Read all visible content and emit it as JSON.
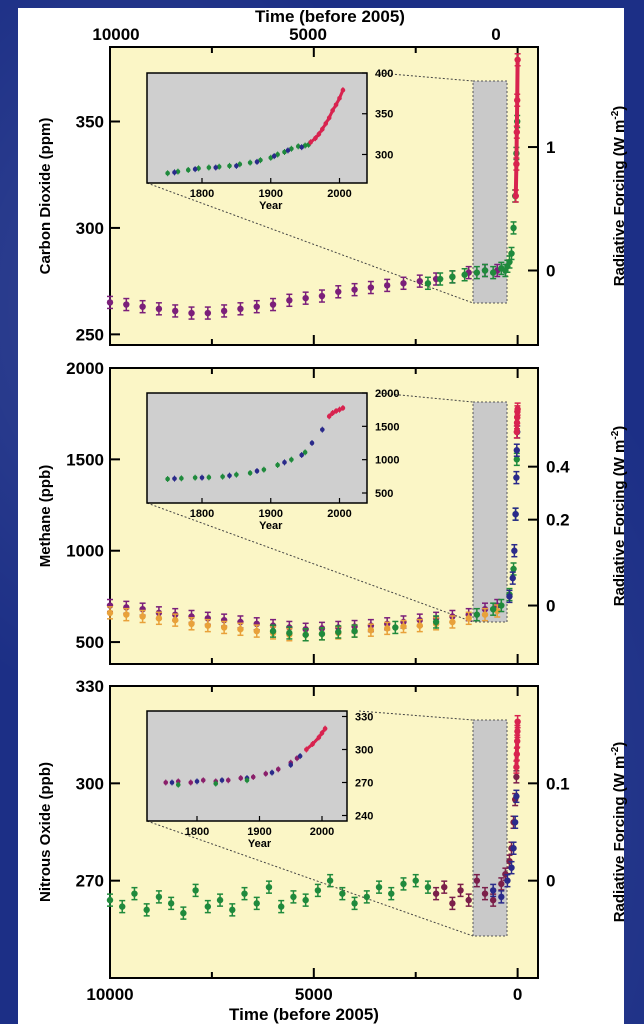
{
  "chart_data": [
    {
      "type": "scatter",
      "ylabel": "Carbon Dioxide (ppm)",
      "y2label": "Radiative Forcing (W m",
      "y2label_sup": "-2",
      "xlim": [
        10000,
        -500
      ],
      "ylim": [
        245,
        385
      ],
      "yticks": [
        "250",
        "300",
        "350"
      ],
      "yticks_values": [
        250,
        300,
        350
      ],
      "y2ticks": [
        "0",
        "1"
      ],
      "y2ticks_ppm": [
        280,
        338
      ],
      "xticks": [
        "10000",
        "5000",
        "0"
      ],
      "xticks_values": [
        10000,
        5000,
        0
      ],
      "inset": {
        "xlabel": "Year",
        "xticks": [
          "1800",
          "1900",
          "2000"
        ],
        "xticks_values": [
          1800,
          1900,
          2000
        ],
        "xlim": [
          1720,
          2040
        ],
        "ylim": [
          265,
          400
        ],
        "yticks": [
          "400",
          "350",
          "300"
        ],
        "yticks_values": [
          400,
          350,
          300
        ],
        "series": [
          {
            "color": "#1f8a3c",
            "x": [
              1750,
              1765,
              1780,
              1795,
              1810,
              1825,
              1840,
              1855,
              1870,
              1885,
              1900,
              1910,
              1920,
              1930,
              1940,
              1950,
              1955
            ],
            "y": [
              277,
              279,
              281,
              283,
              284,
              285,
              286,
              288,
              290,
              293,
              296,
              300,
              303,
              307,
              310,
              311,
              312
            ]
          },
          {
            "color": "#2a2a8a",
            "x": [
              1760,
              1790,
              1820,
              1850,
              1880,
              1905,
              1925,
              1945
            ],
            "y": [
              278,
              282,
              284,
              286,
              291,
              298,
              305,
              309
            ]
          },
          {
            "color": "#d8234f",
            "x": [
              1958,
              1965,
              1970,
              1975,
              1980,
              1985,
              1990,
              1995,
              2000,
              2005
            ],
            "y": [
              315,
              320,
              325,
              331,
              338,
              345,
              354,
              361,
              369,
              379
            ]
          }
        ]
      },
      "series": [
        {
          "color": "#7b1f7a",
          "x": [
            10000,
            9600,
            9200,
            8800,
            8400,
            8000,
            7600,
            7200,
            6800,
            6400,
            6000,
            5600,
            5200,
            4800,
            4400,
            4000,
            3600,
            3200,
            2800,
            2400,
            2000,
            1600,
            1200,
            800,
            500
          ],
          "y": [
            265,
            264,
            263,
            262,
            261,
            260,
            260,
            261,
            262,
            263,
            264,
            266,
            267,
            268,
            270,
            271,
            272,
            273,
            274,
            275,
            276,
            277,
            279,
            280,
            280
          ]
        },
        {
          "color": "#1f8a3c",
          "x": [
            2200,
            1900,
            1600,
            1300,
            1000,
            800,
            600,
            400,
            300,
            250,
            200,
            150,
            100,
            60,
            30,
            10
          ],
          "y": [
            274,
            276,
            277,
            278,
            279,
            280,
            279,
            281,
            280,
            282,
            284,
            288,
            300,
            315,
            335,
            350
          ]
        },
        {
          "color": "#d8234f",
          "x": [
            45,
            30,
            20,
            10,
            0
          ],
          "y": [
            315,
            330,
            345,
            360,
            379
          ]
        }
      ]
    },
    {
      "type": "scatter",
      "ylabel": "Methane (ppb)",
      "y2label": "Radiative Forcing (W m",
      "y2label_sup": "-2",
      "xlim": [
        10000,
        -500
      ],
      "ylim": [
        380,
        2000
      ],
      "yticks": [
        "500",
        "1000",
        "1500",
        "2000"
      ],
      "yticks_values": [
        500,
        1000,
        1500,
        2000
      ],
      "y2ticks": [
        "0",
        "0.2",
        "0.4"
      ],
      "y2ticks_ppb": [
        700,
        1170,
        1460
      ],
      "xticks": [
        "10000",
        "5000",
        "0"
      ],
      "xticks_values": [
        10000,
        5000,
        0
      ],
      "inset": {
        "xlabel": "Year",
        "xticks": [
          "1800",
          "1900",
          "2000"
        ],
        "xticks_values": [
          1800,
          1900,
          2000
        ],
        "xlim": [
          1720,
          2040
        ],
        "ylim": [
          350,
          2000
        ],
        "yticks": [
          "2000",
          "1500",
          "1000",
          "500"
        ],
        "yticks_values": [
          2000,
          1500,
          1000,
          500
        ],
        "series": [
          {
            "color": "#1f8a3c",
            "x": [
              1750,
              1770,
              1790,
              1810,
              1830,
              1850,
              1870,
              1890,
              1910,
              1930,
              1950
            ],
            "y": [
              710,
              720,
              730,
              735,
              745,
              775,
              800,
              850,
              920,
              1000,
              1110
            ]
          },
          {
            "color": "#2a2a8a",
            "x": [
              1760,
              1800,
              1840,
              1880,
              1920,
              1945,
              1960,
              1975
            ],
            "y": [
              715,
              730,
              760,
              830,
              960,
              1070,
              1250,
              1450
            ]
          },
          {
            "color": "#d8234f",
            "x": [
              1985,
              1990,
              1995,
              2000,
              2005
            ],
            "y": [
              1650,
              1700,
              1730,
              1750,
              1775
            ]
          }
        ]
      },
      "series": [
        {
          "color": "#7b1f7a",
          "x": [
            10000,
            9600,
            9200,
            8800,
            8400,
            8000,
            7600,
            7200,
            6800,
            6400,
            6000,
            5600,
            5200,
            4800,
            4400,
            4000,
            3600,
            3200,
            2800,
            2400,
            2000,
            1600,
            1200,
            800,
            500
          ],
          "y": [
            700,
            690,
            680,
            660,
            650,
            640,
            630,
            620,
            610,
            600,
            590,
            580,
            570,
            575,
            580,
            585,
            590,
            600,
            610,
            620,
            630,
            640,
            650,
            680,
            700
          ]
        },
        {
          "color": "#e8a13a",
          "x": [
            10000,
            9600,
            9200,
            8800,
            8400,
            8000,
            7600,
            7200,
            6800,
            6400,
            6000,
            5600,
            5200,
            4800,
            4400,
            4000,
            3600,
            3200,
            2800,
            2400,
            2000,
            1600,
            1200,
            800,
            500
          ],
          "y": [
            660,
            650,
            640,
            630,
            620,
            600,
            590,
            580,
            570,
            560,
            550,
            540,
            540,
            545,
            550,
            560,
            565,
            575,
            585,
            590,
            600,
            610,
            630,
            650,
            670
          ]
        },
        {
          "color": "#1f8a3c",
          "x": [
            6000,
            5600,
            5200,
            4800,
            4400,
            4000,
            3000,
            2000,
            1000,
            600,
            400,
            200,
            100,
            50,
            20
          ],
          "y": [
            560,
            550,
            540,
            545,
            555,
            560,
            580,
            610,
            650,
            680,
            700,
            760,
            900,
            1200,
            1500
          ]
        },
        {
          "color": "#2a2a8a",
          "x": [
            200,
            120,
            80,
            50,
            30,
            20,
            10
          ],
          "y": [
            750,
            850,
            1000,
            1200,
            1400,
            1550,
            1650
          ]
        },
        {
          "color": "#d8234f",
          "x": [
            20,
            15,
            10,
            5,
            0
          ],
          "y": [
            1650,
            1700,
            1730,
            1760,
            1775
          ]
        }
      ]
    },
    {
      "type": "scatter",
      "ylabel": "Nitrous Oxide (ppb)",
      "y2label": "Radiative Forcing (W m",
      "y2label_sup": "-2",
      "xlim": [
        10000,
        -500
      ],
      "ylim": [
        240,
        330
      ],
      "yticks": [
        "270",
        "300",
        "330"
      ],
      "yticks_values": [
        270,
        300,
        330
      ],
      "y2ticks": [
        "0",
        "0.1"
      ],
      "y2ticks_ppb": [
        270,
        300
      ],
      "xticks": [
        "10000",
        "5000",
        "0"
      ],
      "xticks_values": [
        10000,
        5000,
        0
      ],
      "xlabel": "Time (before 2005)",
      "inset": {
        "xlabel": "Year",
        "xticks": [
          "1800",
          "1900",
          "2000"
        ],
        "xticks_values": [
          1800,
          1900,
          2000
        ],
        "xlim": [
          1720,
          2040
        ],
        "ylim": [
          235,
          335
        ],
        "yticks": [
          "330",
          "300",
          "270",
          "240"
        ],
        "yticks_values": [
          330,
          300,
          270,
          240
        ],
        "series": [
          {
            "color": "#8a1f6a",
            "x": [
              1750,
              1770,
              1790,
              1810,
              1830,
              1850,
              1870,
              1890,
              1910,
              1930,
              1950,
              1960
            ],
            "y": [
              270,
              271,
              270,
              272,
              271,
              272,
              274,
              275,
              278,
              282,
              288,
              292
            ]
          },
          {
            "color": "#2a2a8a",
            "x": [
              1760,
              1800,
              1840,
              1880,
              1920,
              1950,
              1965
            ],
            "y": [
              270,
              271,
              272,
              274,
              279,
              286,
              294
            ]
          },
          {
            "color": "#1f8a3c",
            "x": [
              1770,
              1830,
              1880
            ],
            "y": [
              268,
              269,
              272
            ]
          },
          {
            "color": "#d8234f",
            "x": [
              1975,
              1985,
              1995,
              2000,
              2005
            ],
            "y": [
              300,
              305,
              311,
              315,
              319
            ]
          }
        ]
      },
      "series": [
        {
          "color": "#1f8a3c",
          "x": [
            10000,
            9700,
            9400,
            9100,
            8800,
            8500,
            8200,
            7900,
            7600,
            7300,
            7000,
            6700,
            6400,
            6100,
            5800,
            5500,
            5200,
            4900,
            4600,
            4300,
            4000,
            3700,
            3400,
            3100,
            2800,
            2500,
            2200
          ],
          "y": [
            264,
            262,
            266,
            261,
            265,
            263,
            260,
            267,
            262,
            264,
            261,
            266,
            263,
            268,
            262,
            265,
            264,
            267,
            270,
            266,
            263,
            265,
            268,
            266,
            269,
            270,
            268
          ]
        },
        {
          "color": "#7b1f4a",
          "x": [
            2000,
            1800,
            1600,
            1400,
            1200,
            1000,
            800,
            600,
            400,
            300,
            200,
            150,
            100,
            60,
            30
          ],
          "y": [
            266,
            268,
            263,
            267,
            264,
            270,
            266,
            264,
            269,
            272,
            276,
            280,
            288,
            295,
            302
          ]
        },
        {
          "color": "#2a2a8a",
          "x": [
            600,
            400,
            250,
            150,
            100,
            60,
            30
          ],
          "y": [
            267,
            265,
            270,
            274,
            280,
            288,
            296
          ]
        },
        {
          "color": "#d8234f",
          "x": [
            30,
            20,
            10,
            5,
            0
          ],
          "y": [
            305,
            309,
            313,
            316,
            319
          ]
        }
      ]
    }
  ],
  "top_axis": {
    "title": "Time (before 2005)",
    "ticks": [
      "10000",
      "5000",
      "0"
    ]
  }
}
